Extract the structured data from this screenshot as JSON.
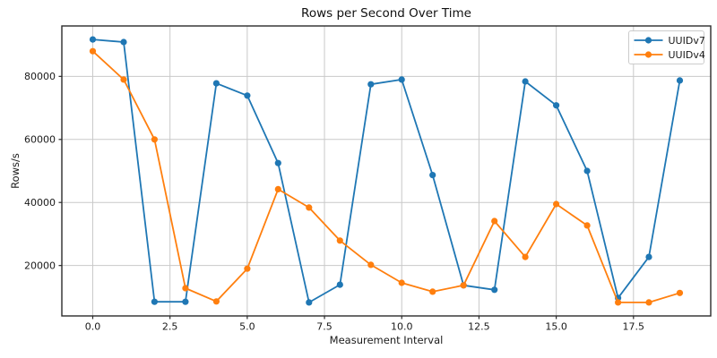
{
  "chart_data": {
    "type": "line",
    "title": "Rows per Second Over Time",
    "xlabel": "Measurement Interval",
    "ylabel": "Rows/s",
    "x": [
      0,
      1,
      2,
      3,
      4,
      5,
      6,
      7,
      8,
      9,
      10,
      11,
      12,
      13,
      14,
      15,
      16,
      17,
      18,
      19
    ],
    "series": [
      {
        "name": "UUIDv7",
        "color": "#1f77b4",
        "values": [
          91700,
          90900,
          8500,
          8500,
          77800,
          73900,
          52500,
          8300,
          13900,
          77500,
          79000,
          48700,
          13700,
          12300,
          78400,
          70800,
          50000,
          9700,
          22700,
          78700
        ]
      },
      {
        "name": "UUIDv4",
        "color": "#ff7f0e",
        "values": [
          88000,
          79000,
          60000,
          12800,
          8600,
          19000,
          44200,
          38400,
          27900,
          20200,
          14500,
          11700,
          13700,
          34100,
          22700,
          39500,
          32700,
          8300,
          8300,
          11300
        ]
      }
    ],
    "xlim": [
      -1,
      20
    ],
    "ylim": [
      4000,
      96000
    ],
    "xticks": {
      "values": [
        0,
        2.5,
        5,
        7.5,
        10,
        12.5,
        15,
        17.5
      ],
      "labels": [
        "0.0",
        "2.5",
        "5.0",
        "7.5",
        "10.0",
        "12.5",
        "15.0",
        "17.5"
      ]
    },
    "yticks": {
      "values": [
        20000,
        40000,
        60000,
        80000
      ],
      "labels": [
        "20000",
        "40000",
        "60000",
        "80000"
      ]
    },
    "grid": true,
    "legend": {
      "position": "upper right",
      "entries": [
        "UUIDv7",
        "UUIDv4"
      ]
    },
    "background": "#ffffff",
    "grid_color": "#c9c9c9",
    "axis_color": "#2b2b2b",
    "text_color": "#1a1a1a"
  }
}
